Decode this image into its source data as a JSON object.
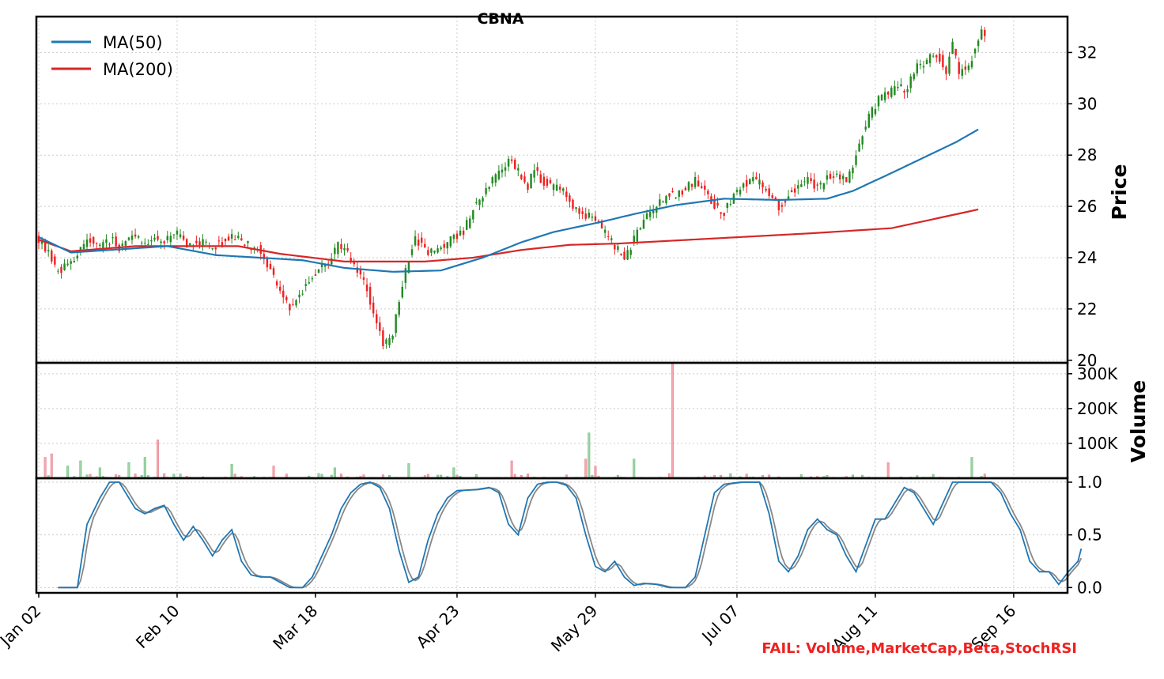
{
  "chart_data": {
    "type": "candlestick",
    "title": "CBNA",
    "footer_text": "FAIL: Volume,MarketCap,Beta,StochRSI",
    "x_tick_labels": [
      "Jan 02",
      "Feb 10",
      "Mar 18",
      "Apr 23",
      "May 29",
      "Jul 07",
      "Aug 11",
      "Sep 16"
    ],
    "colors": {
      "up": "#228b22",
      "down": "#ee2222",
      "ma50": "#1f77b4",
      "ma200": "#d62728",
      "stoch_k": "#1f77b4",
      "stoch_d": "#888888",
      "footer": "#ee2222"
    },
    "price_panel": {
      "ylabel": "Price",
      "ylim": [
        19.9,
        33.4
      ],
      "yticks": [
        20,
        22,
        24,
        26,
        28,
        30,
        32
      ],
      "legend": {
        "placement": "top-left",
        "entries": [
          "MA(50)",
          "MA(200)"
        ]
      },
      "grid": true
    },
    "volume_panel": {
      "ylabel": "Volume",
      "ylim": [
        0,
        320000
      ],
      "yticks": [
        100000,
        200000,
        300000
      ],
      "ytick_labels": [
        "100K",
        "200K",
        "300K"
      ],
      "grid": true
    },
    "stoch_panel": {
      "ylim": [
        -0.05,
        1.0
      ],
      "yticks": [
        0.0,
        0.5,
        1.0
      ],
      "ytick_labels": [
        "0.0",
        "0.5",
        "1.0"
      ],
      "grid": true
    },
    "ma_anchors": {
      "ma50": [
        [
          0,
          24.8
        ],
        [
          10,
          24.2
        ],
        [
          40,
          24.45
        ],
        [
          55,
          24.1
        ],
        [
          82,
          23.9
        ],
        [
          95,
          23.6
        ],
        [
          110,
          23.45
        ],
        [
          125,
          23.5
        ],
        [
          138,
          24.0
        ],
        [
          150,
          24.6
        ],
        [
          160,
          25.0
        ],
        [
          175,
          25.4
        ],
        [
          185,
          25.7
        ],
        [
          198,
          26.05
        ],
        [
          213,
          26.3
        ],
        [
          230,
          26.25
        ],
        [
          245,
          26.3
        ],
        [
          253,
          26.6
        ],
        [
          265,
          27.3
        ],
        [
          285,
          28.5
        ],
        [
          292,
          29.0
        ]
      ],
      "ma200": [
        [
          0,
          24.7
        ],
        [
          10,
          24.25
        ],
        [
          30,
          24.45
        ],
        [
          62,
          24.45
        ],
        [
          75,
          24.15
        ],
        [
          95,
          23.85
        ],
        [
          120,
          23.85
        ],
        [
          135,
          24.0
        ],
        [
          150,
          24.3
        ],
        [
          165,
          24.5
        ],
        [
          180,
          24.55
        ],
        [
          210,
          24.75
        ],
        [
          240,
          24.95
        ],
        [
          265,
          25.15
        ],
        [
          292,
          25.88
        ]
      ]
    },
    "stoch_anchors": [
      [
        0,
        0.0
      ],
      [
        6,
        0.0
      ],
      [
        9,
        0.6
      ],
      [
        13,
        0.85
      ],
      [
        16,
        1.0
      ],
      [
        19,
        1.0
      ],
      [
        24,
        0.75
      ],
      [
        27,
        0.7
      ],
      [
        30,
        0.75
      ],
      [
        33,
        0.78
      ],
      [
        36,
        0.6
      ],
      [
        39,
        0.45
      ],
      [
        42,
        0.58
      ],
      [
        45,
        0.45
      ],
      [
        48,
        0.3
      ],
      [
        51,
        0.45
      ],
      [
        54,
        0.55
      ],
      [
        57,
        0.25
      ],
      [
        60,
        0.12
      ],
      [
        63,
        0.1
      ],
      [
        66,
        0.1
      ],
      [
        69,
        0.05
      ],
      [
        72,
        0.0
      ],
      [
        76,
        0.0
      ],
      [
        79,
        0.1
      ],
      [
        82,
        0.3
      ],
      [
        85,
        0.5
      ],
      [
        88,
        0.75
      ],
      [
        91,
        0.9
      ],
      [
        94,
        0.98
      ],
      [
        97,
        1.0
      ],
      [
        100,
        0.95
      ],
      [
        103,
        0.75
      ],
      [
        106,
        0.35
      ],
      [
        109,
        0.05
      ],
      [
        112,
        0.1
      ],
      [
        115,
        0.45
      ],
      [
        118,
        0.7
      ],
      [
        121,
        0.85
      ],
      [
        124,
        0.92
      ],
      [
        130,
        0.93
      ],
      [
        134,
        0.95
      ],
      [
        137,
        0.9
      ],
      [
        140,
        0.6
      ],
      [
        143,
        0.5
      ],
      [
        146,
        0.85
      ],
      [
        149,
        0.98
      ],
      [
        152,
        1.0
      ],
      [
        155,
        1.0
      ],
      [
        158,
        0.97
      ],
      [
        161,
        0.85
      ],
      [
        164,
        0.5
      ],
      [
        167,
        0.2
      ],
      [
        170,
        0.15
      ],
      [
        173,
        0.25
      ],
      [
        176,
        0.1
      ],
      [
        179,
        0.02
      ],
      [
        182,
        0.04
      ],
      [
        186,
        0.03
      ],
      [
        190,
        0.0
      ],
      [
        195,
        0.0
      ],
      [
        198,
        0.1
      ],
      [
        201,
        0.5
      ],
      [
        204,
        0.9
      ],
      [
        207,
        0.98
      ],
      [
        212,
        1.0
      ],
      [
        218,
        1.0
      ],
      [
        221,
        0.7
      ],
      [
        224,
        0.25
      ],
      [
        227,
        0.15
      ],
      [
        230,
        0.3
      ],
      [
        233,
        0.55
      ],
      [
        236,
        0.65
      ],
      [
        239,
        0.55
      ],
      [
        242,
        0.5
      ],
      [
        245,
        0.3
      ],
      [
        248,
        0.15
      ],
      [
        251,
        0.4
      ],
      [
        254,
        0.65
      ],
      [
        257,
        0.65
      ],
      [
        260,
        0.8
      ],
      [
        263,
        0.95
      ],
      [
        266,
        0.9
      ],
      [
        269,
        0.75
      ],
      [
        272,
        0.6
      ],
      [
        275,
        0.8
      ],
      [
        278,
        1.0
      ],
      [
        290,
        1.0
      ],
      [
        293,
        0.9
      ],
      [
        296,
        0.7
      ],
      [
        299,
        0.55
      ],
      [
        302,
        0.25
      ],
      [
        305,
        0.15
      ],
      [
        308,
        0.15
      ],
      [
        311,
        0.03
      ],
      [
        314,
        0.15
      ],
      [
        317,
        0.25
      ],
      [
        318,
        0.37
      ]
    ],
    "price_anchors": [
      [
        0,
        24.8
      ],
      [
        4,
        24.2
      ],
      [
        6,
        23.6
      ],
      [
        8,
        23.5
      ],
      [
        10,
        23.8
      ],
      [
        12,
        24.0
      ],
      [
        16,
        24.7
      ],
      [
        20,
        24.4
      ],
      [
        24,
        24.8
      ],
      [
        26,
        24.3
      ],
      [
        30,
        25.0
      ],
      [
        33,
        24.5
      ],
      [
        37,
        24.8
      ],
      [
        40,
        24.6
      ],
      [
        44,
        24.9
      ],
      [
        47,
        24.5
      ],
      [
        50,
        24.7
      ],
      [
        54,
        24.4
      ],
      [
        58,
        24.6
      ],
      [
        62,
        24.8
      ],
      [
        66,
        24.5
      ],
      [
        70,
        24.3
      ],
      [
        73,
        23.5
      ],
      [
        76,
        22.6
      ],
      [
        79,
        22.1
      ],
      [
        82,
        22.5
      ],
      [
        85,
        23.2
      ],
      [
        88,
        23.6
      ],
      [
        91,
        23.8
      ],
      [
        94,
        24.5
      ],
      [
        97,
        24.1
      ],
      [
        100,
        23.5
      ],
      [
        103,
        22.7
      ],
      [
        106,
        21.5
      ],
      [
        108,
        20.5
      ],
      [
        111,
        21.0
      ],
      [
        114,
        23.0
      ],
      [
        116,
        24.0
      ],
      [
        118,
        24.8
      ],
      [
        121,
        24.3
      ],
      [
        124,
        24.2
      ],
      [
        127,
        24.5
      ],
      [
        130,
        24.8
      ],
      [
        133,
        25.0
      ],
      [
        136,
        26.0
      ],
      [
        139,
        26.5
      ],
      [
        142,
        27.0
      ],
      [
        145,
        27.5
      ],
      [
        147,
        27.8
      ],
      [
        150,
        27.4
      ],
      [
        153,
        26.8
      ],
      [
        155,
        27.5
      ],
      [
        157,
        27.0
      ],
      [
        160,
        26.8
      ],
      [
        163,
        26.7
      ],
      [
        166,
        26.2
      ],
      [
        169,
        25.8
      ],
      [
        172,
        25.6
      ],
      [
        175,
        25.3
      ],
      [
        178,
        24.8
      ],
      [
        181,
        24.3
      ],
      [
        183,
        24.0
      ],
      [
        185,
        24.4
      ],
      [
        187,
        25.0
      ],
      [
        190,
        25.6
      ],
      [
        193,
        26.0
      ],
      [
        196,
        26.4
      ],
      [
        199,
        26.5
      ],
      [
        202,
        26.7
      ],
      [
        205,
        27.0
      ],
      [
        208,
        26.6
      ],
      [
        211,
        26.0
      ],
      [
        214,
        25.8
      ],
      [
        217,
        26.5
      ],
      [
        220,
        26.9
      ],
      [
        223,
        27.0
      ],
      [
        226,
        26.8
      ],
      [
        229,
        26.3
      ],
      [
        231,
        25.9
      ],
      [
        234,
        26.5
      ],
      [
        237,
        26.8
      ],
      [
        240,
        27.0
      ],
      [
        243,
        26.7
      ],
      [
        246,
        27.1
      ],
      [
        249,
        27.2
      ],
      [
        252,
        27.0
      ],
      [
        254,
        27.6
      ],
      [
        256,
        28.5
      ],
      [
        259,
        29.5
      ],
      [
        262,
        30.2
      ],
      [
        265,
        30.4
      ],
      [
        268,
        30.7
      ],
      [
        271,
        30.5
      ],
      [
        273,
        31.3
      ],
      [
        276,
        31.6
      ],
      [
        279,
        32.0
      ],
      [
        281,
        31.8
      ],
      [
        283,
        31.3
      ],
      [
        285,
        32.3
      ],
      [
        287,
        31.2
      ],
      [
        290,
        31.5
      ],
      [
        292,
        32.1
      ],
      [
        294,
        32.8
      ]
    ],
    "volume_spikes": [
      [
        2,
        60000
      ],
      [
        4,
        70000
      ],
      [
        9,
        35000
      ],
      [
        13,
        50000
      ],
      [
        19,
        30000
      ],
      [
        28,
        45000
      ],
      [
        33,
        60000
      ],
      [
        37,
        110000
      ],
      [
        60,
        40000
      ],
      [
        73,
        35000
      ],
      [
        92,
        30000
      ],
      [
        115,
        42000
      ],
      [
        129,
        30000
      ],
      [
        147,
        50000
      ],
      [
        170,
        55000
      ],
      [
        171,
        130000
      ],
      [
        173,
        35000
      ],
      [
        185,
        55000
      ],
      [
        197,
        330000
      ],
      [
        264,
        45000
      ],
      [
        290,
        60000
      ]
    ]
  }
}
